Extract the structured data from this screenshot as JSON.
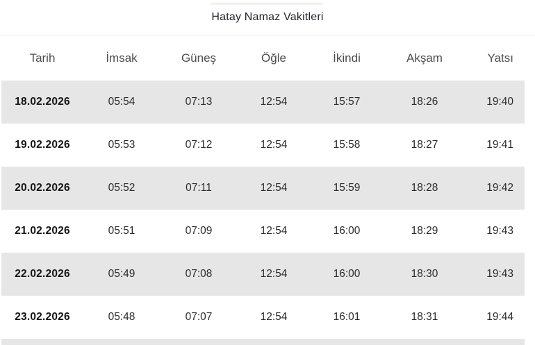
{
  "title": "Hatay Namaz Vakitleri",
  "table": {
    "headers": [
      "Tarih",
      "İmsak",
      "Güneş",
      "Öğle",
      "İkindi",
      "Akşam",
      "Yatsı"
    ],
    "rows": [
      {
        "cells": [
          "18.02.2026",
          "05:54",
          "07:13",
          "12:54",
          "15:57",
          "18:26",
          "19:40"
        ]
      },
      {
        "cells": [
          "19.02.2026",
          "05:53",
          "07:12",
          "12:54",
          "15:58",
          "18:27",
          "19:41"
        ]
      },
      {
        "cells": [
          "20.02.2026",
          "05:52",
          "07:11",
          "12:54",
          "15:59",
          "18:28",
          "19:42"
        ]
      },
      {
        "cells": [
          "21.02.2026",
          "05:51",
          "07:09",
          "12:54",
          "16:00",
          "18:29",
          "19:43"
        ]
      },
      {
        "cells": [
          "22.02.2026",
          "05:49",
          "07:08",
          "12:54",
          "16:00",
          "18:30",
          "19:43"
        ]
      },
      {
        "cells": [
          "23.02.2026",
          "05:48",
          "07:07",
          "12:54",
          "16:01",
          "18:31",
          "19:44"
        ]
      }
    ]
  },
  "colors": {
    "stripe": "#e6e6e6",
    "divider": "#ededed",
    "title_text": "#23252e",
    "header_text": "#4d4d4d",
    "date_text": "#151515",
    "time_text": "#2b2b2b",
    "remnant": "#eeeeee"
  }
}
